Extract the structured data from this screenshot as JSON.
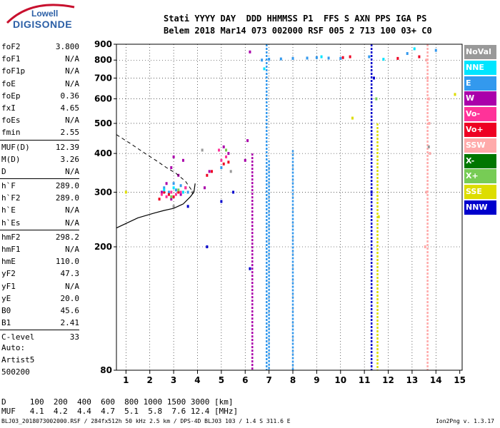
{
  "logo": {
    "line1": "Lowell",
    "line2": "DIGISONDE"
  },
  "header": {
    "line1": "Stati YYYY DAY  DDD HHMMSS P1  FFS S AXN PPS IGA PS",
    "line2": "Belem 2018 Mar14 073 002000 RSF 005 2 713 100 03+ C0"
  },
  "params": [
    {
      "k": "foF2",
      "v": "3.800"
    },
    {
      "k": "foF1",
      "v": "N/A"
    },
    {
      "k": "foF1p",
      "v": "N/A"
    },
    {
      "k": "foE",
      "v": "N/A"
    },
    {
      "k": "foEp",
      "v": "0.36"
    },
    {
      "k": "fxI",
      "v": "4.65"
    },
    {
      "k": "foEs",
      "v": "N/A"
    },
    {
      "k": "fmin",
      "v": "2.55"
    },
    {
      "k": "MUF(D)",
      "v": "12.39"
    },
    {
      "k": "M(D)",
      "v": "3.26"
    },
    {
      "k": "D",
      "v": "N/A"
    },
    {
      "k": "h`F",
      "v": "289.0"
    },
    {
      "k": "h`F2",
      "v": "289.0"
    },
    {
      "k": "h`E",
      "v": "N/A"
    },
    {
      "k": "h`Es",
      "v": "N/A"
    },
    {
      "k": "hmF2",
      "v": "298.2"
    },
    {
      "k": "hmF1",
      "v": "N/A"
    },
    {
      "k": "hmE",
      "v": "110.0"
    },
    {
      "k": "yF2",
      "v": "47.3"
    },
    {
      "k": "yF1",
      "v": "N/A"
    },
    {
      "k": "yE",
      "v": "20.0"
    },
    {
      "k": "B0",
      "v": "45.6"
    },
    {
      "k": "B1",
      "v": "2.41"
    },
    {
      "k": "C-level",
      "v": "33"
    }
  ],
  "auto": {
    "line1": "Auto:",
    "line2": "Artist5",
    "line3": "500200"
  },
  "legend": [
    {
      "label": "NoVal",
      "color": "#999999"
    },
    {
      "label": "NNE",
      "color": "#00e5ff"
    },
    {
      "label": "E",
      "color": "#3399ee"
    },
    {
      "label": "W",
      "color": "#aa00aa"
    },
    {
      "label": "Vo-",
      "color": "#ff3399"
    },
    {
      "label": "Vo+",
      "color": "#ee0022"
    },
    {
      "label": "SSW",
      "color": "#ffaaaa"
    },
    {
      "label": "X-",
      "color": "#007700"
    },
    {
      "label": "X+",
      "color": "#77cc55"
    },
    {
      "label": "SSE",
      "color": "#dddd00"
    },
    {
      "label": "NNW",
      "color": "#0000cc"
    }
  ],
  "dtable": {
    "line1": "D     100  200  400  600  800 1000 1500 3000 [km]",
    "line2": "MUF   4.1  4.2  4.4  4.7  5.1  5.8  7.6 12.4 [MHz]"
  },
  "footer": {
    "left": "BLJ03_2018073002000.RSF / 284fx512h 50 kHz 2.5 km / DPS-4D BLJ03 103 / 1.4 S 311.6 E",
    "right": "Ion2Png v. 1.3.17"
  },
  "chart_data": {
    "type": "scatter",
    "title": "",
    "xlabel": "",
    "ylabel": "",
    "xlim": [
      0.6,
      15.1
    ],
    "ylim": [
      80,
      900
    ],
    "xticks": [
      1,
      2,
      3,
      4,
      5,
      6,
      7,
      8,
      9,
      10,
      11,
      12,
      13,
      14,
      15
    ],
    "yticks": [
      80,
      200,
      300,
      400,
      500,
      600,
      700,
      800,
      900
    ],
    "grid": true,
    "vgrid_dotted": [
      1,
      2,
      3,
      4,
      5,
      6,
      7,
      8,
      9,
      10,
      11,
      12,
      13,
      14
    ],
    "hgrid_dotted": [
      200,
      300,
      400,
      500,
      600,
      700,
      800
    ],
    "series": [
      {
        "name": "W",
        "color": "#aa00aa",
        "points": [
          [
            2.5,
            300
          ],
          [
            2.7,
            320
          ],
          [
            2.9,
            360
          ],
          [
            3.0,
            390
          ],
          [
            3.2,
            340
          ],
          [
            3.4,
            380
          ],
          [
            3.5,
            310
          ],
          [
            4.3,
            310
          ],
          [
            4.5,
            350
          ],
          [
            5.1,
            420
          ],
          [
            5.3,
            400
          ],
          [
            6.0,
            380
          ],
          [
            6.1,
            440
          ],
          [
            6.2,
            850
          ],
          [
            2.9,
            285
          ],
          [
            3.3,
            295
          ]
        ]
      },
      {
        "name": "E",
        "color": "#3399ee",
        "points": [
          [
            2.6,
            310
          ],
          [
            2.8,
            300
          ],
          [
            3.0,
            320
          ],
          [
            3.1,
            305
          ],
          [
            3.3,
            315
          ],
          [
            3.6,
            300
          ],
          [
            5.0,
            360
          ],
          [
            6.7,
            800
          ],
          [
            7.0,
            805
          ],
          [
            7.5,
            807
          ],
          [
            8.0,
            810
          ],
          [
            8.6,
            812
          ],
          [
            9.0,
            815
          ],
          [
            9.5,
            812
          ],
          [
            10.0,
            810
          ],
          [
            11.2,
            820
          ],
          [
            12.8,
            840
          ],
          [
            14.0,
            860
          ]
        ]
      },
      {
        "name": "Vo-",
        "color": "#ff3399",
        "points": [
          [
            2.5,
            295
          ],
          [
            2.7,
            290
          ],
          [
            2.9,
            300
          ],
          [
            3.1,
            295
          ],
          [
            3.3,
            300
          ],
          [
            3.5,
            310
          ],
          [
            5.0,
            380
          ],
          [
            5.2,
            390
          ],
          [
            4.9,
            410
          ]
        ]
      },
      {
        "name": "Vo+",
        "color": "#ee0022",
        "points": [
          [
            2.4,
            285
          ],
          [
            2.6,
            300
          ],
          [
            2.8,
            295
          ],
          [
            3.0,
            290
          ],
          [
            3.2,
            300
          ],
          [
            4.4,
            340
          ],
          [
            4.6,
            350
          ],
          [
            5.1,
            370
          ],
          [
            5.3,
            375
          ],
          [
            10.1,
            815
          ],
          [
            10.4,
            820
          ],
          [
            12.4,
            810
          ],
          [
            13.3,
            820
          ]
        ]
      },
      {
        "name": "NNE",
        "color": "#00e5ff",
        "points": [
          [
            2.6,
            305
          ],
          [
            3.0,
            310
          ],
          [
            3.4,
            300
          ],
          [
            6.8,
            750
          ],
          [
            9.2,
            820
          ],
          [
            11.8,
            805
          ],
          [
            13.1,
            870
          ]
        ]
      },
      {
        "name": "SSW",
        "color": "#ffaaaa",
        "points": [
          [
            13.6,
            800
          ],
          [
            13.65,
            700
          ],
          [
            13.7,
            600
          ],
          [
            13.72,
            500
          ],
          [
            13.75,
            400
          ],
          [
            13.6,
            300
          ],
          [
            13.55,
            200
          ]
        ]
      },
      {
        "name": "X+",
        "color": "#77cc55",
        "points": [
          [
            2.9,
            290
          ],
          [
            3.2,
            305
          ],
          [
            5.2,
            410
          ],
          [
            11.5,
            600
          ]
        ]
      },
      {
        "name": "SSE",
        "color": "#dddd00",
        "points": [
          [
            1.0,
            300
          ],
          [
            10.5,
            520
          ],
          [
            11.6,
            250
          ],
          [
            14.8,
            620
          ]
        ]
      },
      {
        "name": "NNW",
        "color": "#0000cc",
        "points": [
          [
            3.6,
            270
          ],
          [
            4.4,
            200
          ],
          [
            5.0,
            280
          ],
          [
            5.5,
            300
          ],
          [
            6.2,
            170
          ],
          [
            11.3,
            300
          ],
          [
            11.4,
            700
          ]
        ]
      },
      {
        "name": "NoVal",
        "color": "#999999",
        "points": [
          [
            3.0,
            270
          ],
          [
            3.8,
            300
          ],
          [
            4.2,
            410
          ],
          [
            5.4,
            350
          ],
          [
            13.7,
            420
          ]
        ]
      }
    ],
    "vertical_streaks": [
      {
        "x": 6.9,
        "ybot": 80,
        "ytop": 900,
        "color": "#3399ee"
      },
      {
        "x": 7.0,
        "ybot": 80,
        "ytop": 380,
        "color": "#3399ee"
      },
      {
        "x": 11.3,
        "ybot": 80,
        "ytop": 900,
        "color": "#0000cc"
      },
      {
        "x": 11.55,
        "ybot": 80,
        "ytop": 500,
        "color": "#dddd00"
      },
      {
        "x": 13.65,
        "ybot": 80,
        "ytop": 900,
        "color": "#ffaaaa"
      },
      {
        "x": 8.0,
        "ybot": 80,
        "ytop": 410,
        "color": "#3399ee"
      },
      {
        "x": 6.3,
        "ybot": 80,
        "ytop": 400,
        "color": "#aa00aa"
      }
    ],
    "profile_solid": [
      [
        0.6,
        230
      ],
      [
        1.5,
        248
      ],
      [
        2.2,
        257
      ],
      [
        2.6,
        262
      ],
      [
        3.0,
        266
      ],
      [
        3.4,
        275
      ],
      [
        3.7,
        290
      ],
      [
        3.85,
        300
      ],
      [
        3.9,
        320
      ]
    ],
    "profile_dashed": [
      [
        0.6,
        460
      ],
      [
        1.2,
        430
      ],
      [
        1.8,
        400
      ],
      [
        2.3,
        378
      ],
      [
        2.7,
        360
      ],
      [
        3.1,
        345
      ],
      [
        3.5,
        325
      ],
      [
        3.75,
        305
      ],
      [
        3.8,
        296
      ]
    ]
  }
}
